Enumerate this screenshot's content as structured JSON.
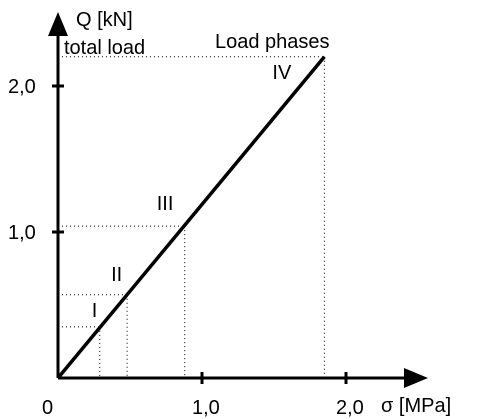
{
  "chart_data": {
    "type": "line",
    "title": "Load phases",
    "ylabel_line1": "Q [kN]",
    "ylabel_line2": "total load",
    "xlabel": "σ [MPa]",
    "origin_label": "0",
    "xlim": [
      0,
      2.4
    ],
    "ylim": [
      0,
      2.45
    ],
    "x_ticks": [
      {
        "value": 1.0,
        "label": "1,0"
      },
      {
        "value": 2.0,
        "label": "2,0"
      }
    ],
    "y_ticks": [
      {
        "value": 1.0,
        "label": "1,0"
      },
      {
        "value": 2.0,
        "label": "2,0"
      }
    ],
    "series": [
      {
        "x": [
          0,
          1.85
        ],
        "y": [
          0,
          2.2
        ]
      }
    ],
    "phases": [
      {
        "label": "I",
        "x": 0.29,
        "y": 0.35
      },
      {
        "label": "II",
        "x": 0.48,
        "y": 0.57
      },
      {
        "label": "III",
        "x": 0.88,
        "y": 1.04
      },
      {
        "label": "IV",
        "x": 1.85,
        "y": 2.2
      }
    ]
  }
}
